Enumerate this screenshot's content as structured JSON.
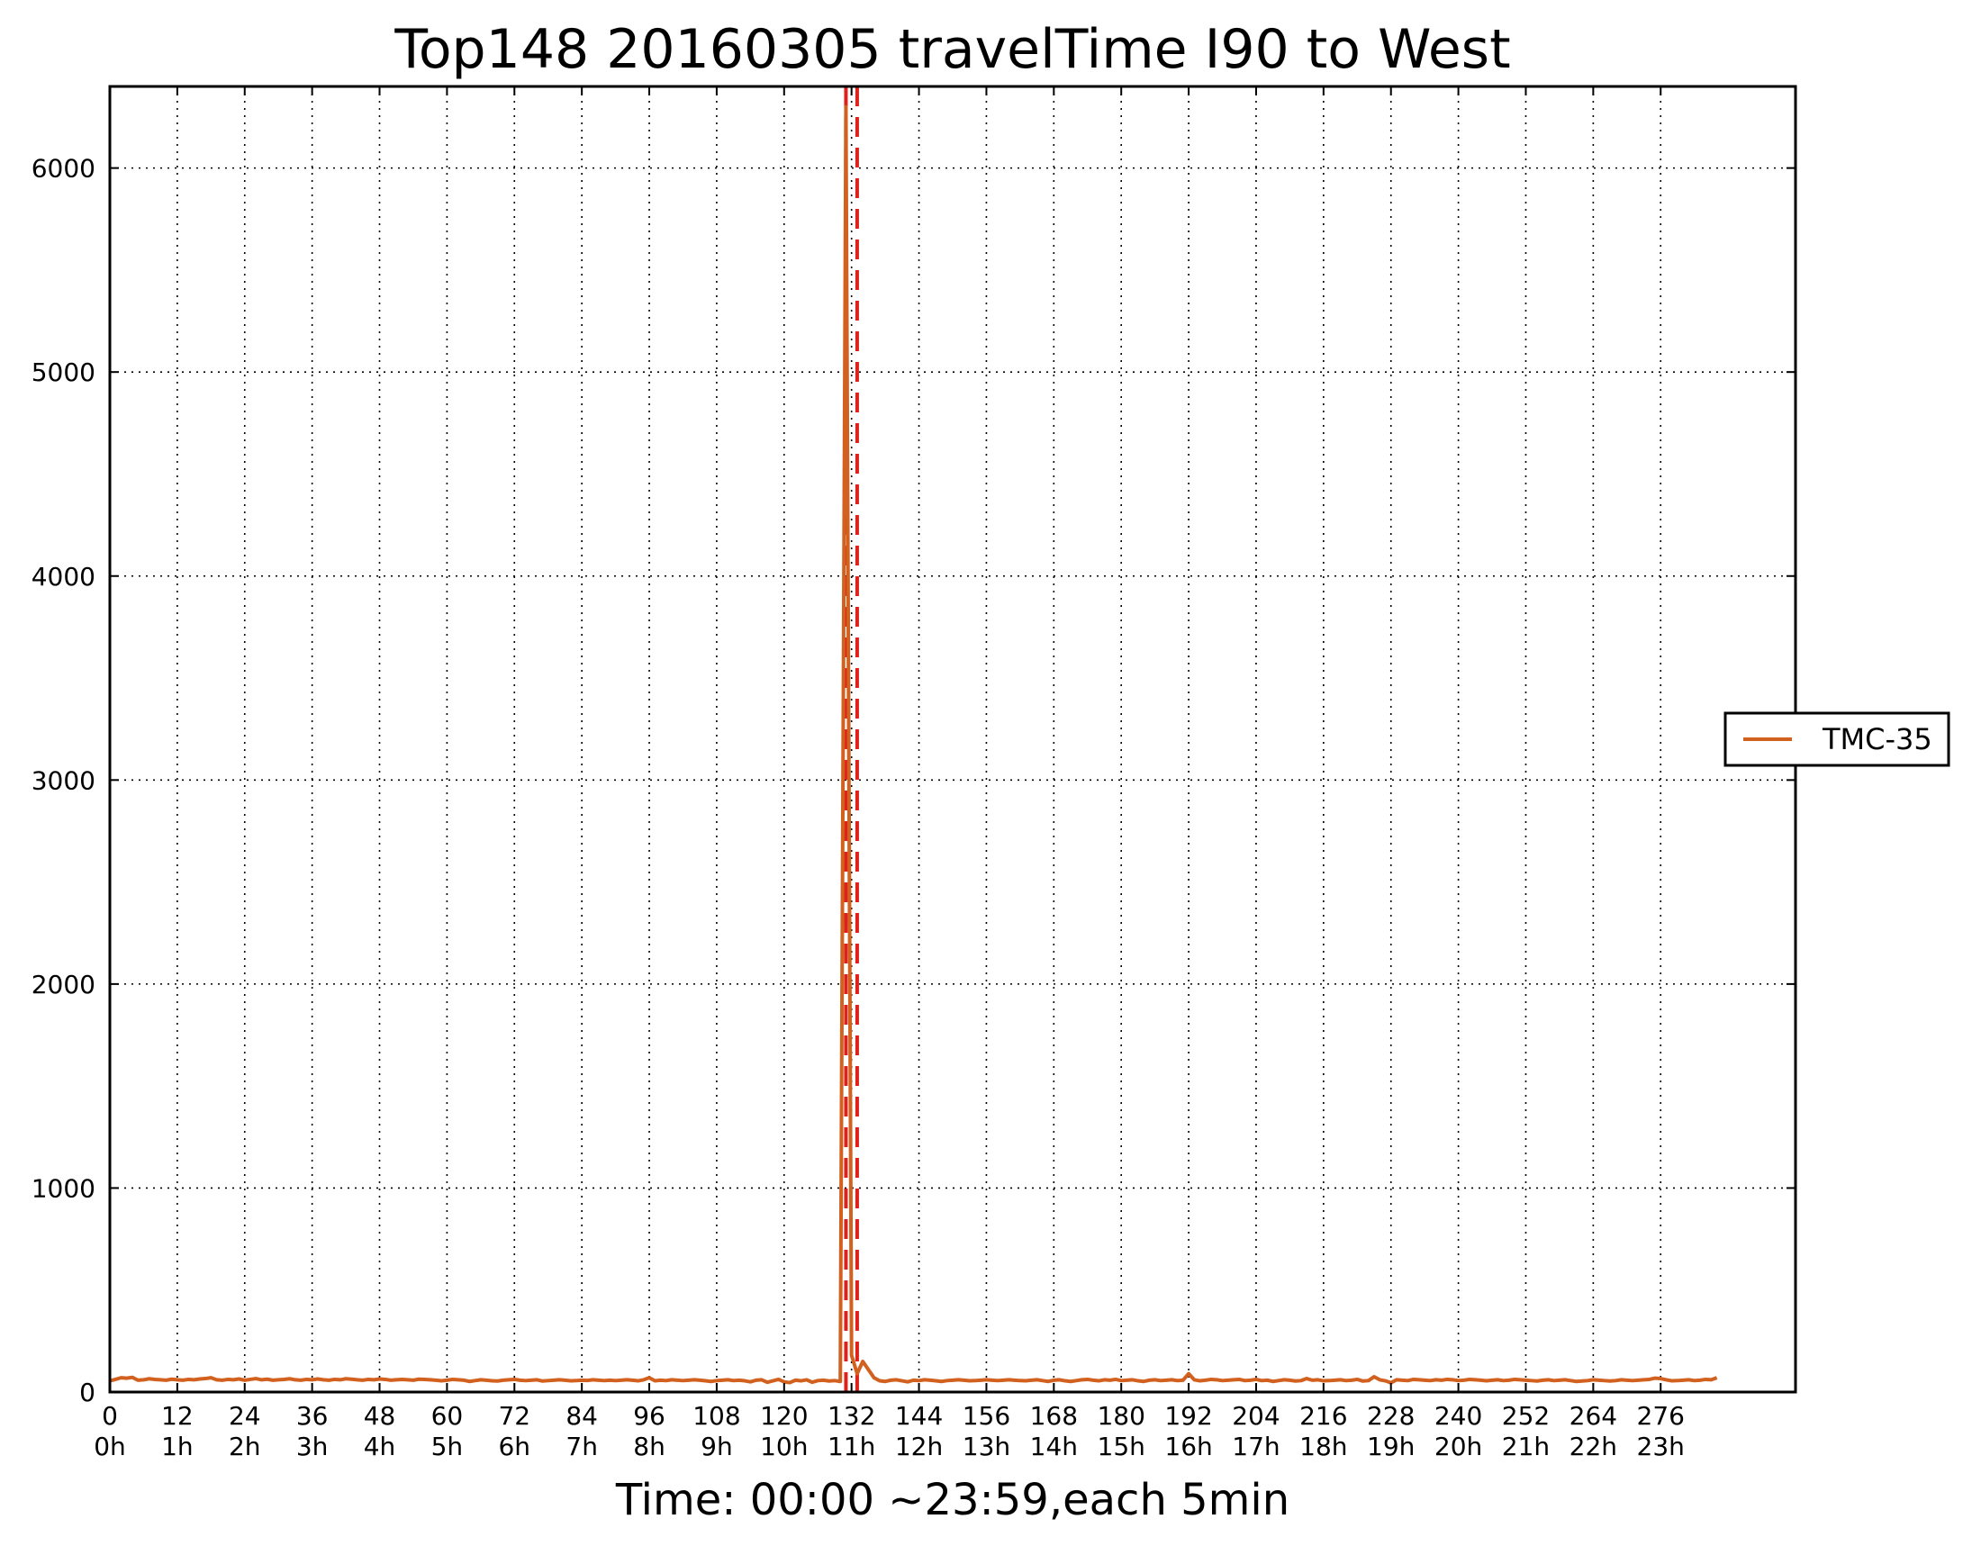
{
  "chart_data": {
    "type": "line",
    "title": "Top148 20160305 travelTime I90 to West",
    "xlabel": "Time: 00:00 ~23:59,each 5min",
    "ylabel": "",
    "xlim": [
      0,
      300
    ],
    "ylim": [
      0,
      6400
    ],
    "grid": true,
    "legend_placement": "right",
    "x_ticks": [
      {
        "value": 0,
        "label": "0",
        "sublabel": "0h"
      },
      {
        "value": 12,
        "label": "12",
        "sublabel": "1h"
      },
      {
        "value": 24,
        "label": "24",
        "sublabel": "2h"
      },
      {
        "value": 36,
        "label": "36",
        "sublabel": "3h"
      },
      {
        "value": 48,
        "label": "48",
        "sublabel": "4h"
      },
      {
        "value": 60,
        "label": "60",
        "sublabel": "5h"
      },
      {
        "value": 72,
        "label": "72",
        "sublabel": "6h"
      },
      {
        "value": 84,
        "label": "84",
        "sublabel": "7h"
      },
      {
        "value": 96,
        "label": "96",
        "sublabel": "8h"
      },
      {
        "value": 108,
        "label": "108",
        "sublabel": "9h"
      },
      {
        "value": 120,
        "label": "120",
        "sublabel": "10h"
      },
      {
        "value": 132,
        "label": "132",
        "sublabel": "11h"
      },
      {
        "value": 144,
        "label": "144",
        "sublabel": "12h"
      },
      {
        "value": 156,
        "label": "156",
        "sublabel": "13h"
      },
      {
        "value": 168,
        "label": "168",
        "sublabel": "14h"
      },
      {
        "value": 180,
        "label": "180",
        "sublabel": "15h"
      },
      {
        "value": 192,
        "label": "192",
        "sublabel": "16h"
      },
      {
        "value": 204,
        "label": "204",
        "sublabel": "17h"
      },
      {
        "value": 216,
        "label": "216",
        "sublabel": "18h"
      },
      {
        "value": 228,
        "label": "228",
        "sublabel": "19h"
      },
      {
        "value": 240,
        "label": "240",
        "sublabel": "20h"
      },
      {
        "value": 252,
        "label": "252",
        "sublabel": "21h"
      },
      {
        "value": 264,
        "label": "264",
        "sublabel": "22h"
      },
      {
        "value": 276,
        "label": "276",
        "sublabel": "23h"
      }
    ],
    "y_ticks": [
      0,
      1000,
      2000,
      3000,
      4000,
      5000,
      6000
    ],
    "vlines": [
      {
        "x": 131,
        "style": "dashed",
        "color": "#e0201a"
      },
      {
        "x": 133,
        "style": "dashed",
        "color": "#e0201a"
      }
    ],
    "series": [
      {
        "name": "TMC-35",
        "color": "#d2601e",
        "x": [
          0,
          1,
          2,
          3,
          4,
          5,
          6,
          7,
          8,
          9,
          10,
          11,
          12,
          13,
          14,
          15,
          16,
          17,
          18,
          19,
          20,
          21,
          22,
          23,
          24,
          25,
          26,
          27,
          28,
          29,
          30,
          31,
          32,
          33,
          34,
          35,
          36,
          37,
          38,
          39,
          40,
          41,
          42,
          43,
          44,
          45,
          46,
          47,
          48,
          49,
          50,
          51,
          52,
          53,
          54,
          55,
          56,
          57,
          58,
          59,
          60,
          61,
          62,
          63,
          64,
          65,
          66,
          67,
          68,
          69,
          70,
          71,
          72,
          73,
          74,
          75,
          76,
          77,
          78,
          79,
          80,
          81,
          82,
          83,
          84,
          85,
          86,
          87,
          88,
          89,
          90,
          91,
          92,
          93,
          94,
          95,
          96,
          97,
          98,
          99,
          100,
          101,
          102,
          103,
          104,
          105,
          106,
          107,
          108,
          109,
          110,
          111,
          112,
          113,
          114,
          115,
          116,
          117,
          118,
          119,
          120,
          121,
          122,
          123,
          124,
          125,
          126,
          127,
          128,
          129,
          130,
          131,
          132,
          133,
          134,
          135,
          136,
          137,
          138,
          139,
          140,
          141,
          142,
          143,
          144,
          145,
          146,
          147,
          148,
          149,
          150,
          151,
          152,
          153,
          154,
          155,
          156,
          157,
          158,
          159,
          160,
          161,
          162,
          163,
          164,
          165,
          166,
          167,
          168,
          169,
          170,
          171,
          172,
          173,
          174,
          175,
          176,
          177,
          178,
          179,
          180,
          181,
          182,
          183,
          184,
          185,
          186,
          187,
          188,
          189,
          190,
          191,
          192,
          193,
          194,
          195,
          196,
          197,
          198,
          199,
          200,
          201,
          202,
          203,
          204,
          205,
          206,
          207,
          208,
          209,
          210,
          211,
          212,
          213,
          214,
          215,
          216,
          217,
          218,
          219,
          220,
          221,
          222,
          223,
          224,
          225,
          226,
          227,
          228,
          229,
          230,
          231,
          232,
          233,
          234,
          235,
          236,
          237,
          238,
          239,
          240,
          241,
          242,
          243,
          244,
          245,
          246,
          247,
          248,
          249,
          250,
          251,
          252,
          253,
          254,
          255,
          256,
          257,
          258,
          259,
          260,
          261,
          262,
          263,
          264,
          265,
          266,
          267,
          268,
          269,
          270,
          271,
          272,
          273,
          274,
          275,
          276,
          277,
          278,
          279,
          280,
          281,
          282,
          283,
          284,
          285,
          286
        ],
        "values": [
          55,
          62,
          70,
          68,
          72,
          58,
          60,
          65,
          62,
          60,
          58,
          63,
          60,
          58,
          62,
          60,
          64,
          66,
          70,
          60,
          58,
          62,
          60,
          64,
          58,
          62,
          66,
          60,
          63,
          58,
          60,
          62,
          65,
          60,
          58,
          62,
          60,
          64,
          60,
          58,
          62,
          60,
          65,
          63,
          60,
          58,
          62,
          60,
          64,
          62,
          58,
          60,
          62,
          60,
          58,
          63,
          62,
          60,
          58,
          55,
          58,
          62,
          60,
          58,
          52,
          56,
          60,
          58,
          55,
          54,
          58,
          60,
          62,
          58,
          56,
          58,
          60,
          54,
          56,
          58,
          60,
          58,
          55,
          56,
          58,
          57,
          60,
          58,
          56,
          58,
          56,
          58,
          60,
          58,
          55,
          60,
          70,
          55,
          58,
          56,
          60,
          58,
          56,
          58,
          60,
          58,
          55,
          52,
          56,
          58,
          60,
          56,
          58,
          55,
          50,
          58,
          60,
          48,
          55,
          62,
          50,
          46,
          58,
          55,
          60,
          48,
          56,
          58,
          54,
          56,
          52,
          6300,
          180,
          90,
          150,
          110,
          70,
          55,
          52,
          58,
          60,
          55,
          50,
          58,
          56,
          60,
          58,
          55,
          52,
          56,
          58,
          60,
          58,
          55,
          56,
          58,
          60,
          58,
          56,
          58,
          60,
          58,
          56,
          55,
          58,
          60,
          56,
          52,
          58,
          60,
          55,
          52,
          56,
          60,
          62,
          58,
          55,
          60,
          58,
          62,
          56,
          58,
          60,
          55,
          52,
          58,
          60,
          56,
          58,
          60,
          56,
          58,
          90,
          60,
          55,
          58,
          62,
          60,
          56,
          58,
          60,
          62,
          56,
          58,
          62,
          56,
          58,
          52,
          56,
          60,
          58,
          54,
          56,
          66,
          58,
          60,
          55,
          56,
          58,
          60,
          56,
          58,
          62,
          54,
          56,
          75,
          60,
          55,
          45,
          60,
          58,
          56,
          62,
          60,
          58,
          56,
          60,
          58,
          62,
          60,
          56,
          58,
          62,
          60,
          58,
          55,
          58,
          60,
          56,
          58,
          62,
          60,
          58,
          56,
          54,
          58,
          60,
          56,
          58,
          60,
          56,
          52,
          54,
          56,
          60,
          58,
          56,
          54,
          56,
          60,
          58,
          56,
          58,
          60,
          62,
          68,
          66,
          60,
          55,
          56,
          58,
          60,
          56,
          58,
          62,
          60,
          70
        ]
      }
    ]
  }
}
